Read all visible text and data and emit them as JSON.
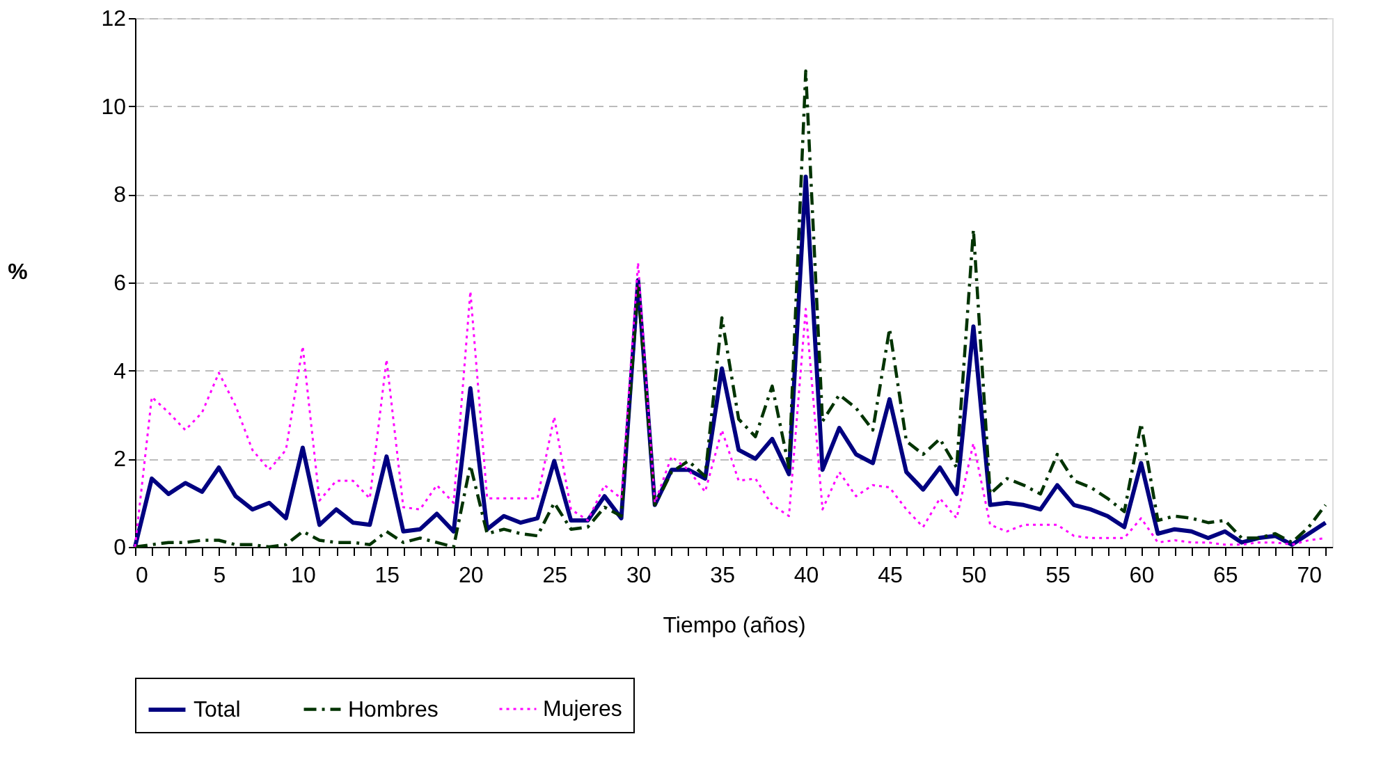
{
  "chart_data": {
    "type": "line",
    "xlabel": "Tiempo (años)",
    "ylabel": "%",
    "x": [
      0,
      1,
      2,
      3,
      4,
      5,
      6,
      7,
      8,
      9,
      10,
      11,
      12,
      13,
      14,
      15,
      16,
      17,
      18,
      19,
      20,
      21,
      22,
      23,
      24,
      25,
      26,
      27,
      28,
      29,
      30,
      31,
      32,
      33,
      34,
      35,
      36,
      37,
      38,
      39,
      40,
      41,
      42,
      43,
      44,
      45,
      46,
      47,
      48,
      49,
      50,
      51,
      52,
      53,
      54,
      55,
      56,
      57,
      58,
      59,
      60,
      61,
      62,
      63,
      64,
      65,
      66,
      67,
      68,
      69,
      70,
      71
    ],
    "xlim": [
      0,
      71.4
    ],
    "xticks": [
      0,
      {
        "value": 1,
        "label": null
      },
      {
        "value": 2,
        "label": null
      },
      {
        "value": 3,
        "label": null
      },
      {
        "value": 4,
        "label": null
      },
      5,
      {
        "value": 6,
        "label": null
      },
      {
        "value": 7,
        "label": null
      },
      {
        "value": 8,
        "label": null
      },
      {
        "value": 9,
        "label": null
      },
      10,
      {
        "value": 11,
        "label": null
      },
      {
        "value": 12,
        "label": null
      },
      {
        "value": 13,
        "label": null
      },
      {
        "value": 14,
        "label": null
      },
      15,
      {
        "value": 16,
        "label": null
      },
      {
        "value": 17,
        "label": null
      },
      {
        "value": 18,
        "label": null
      },
      {
        "value": 19,
        "label": null
      },
      20,
      {
        "value": 21,
        "label": null
      },
      {
        "value": 22,
        "label": null
      },
      {
        "value": 23,
        "label": null
      },
      {
        "value": 24,
        "label": null
      },
      25,
      {
        "value": 26,
        "label": null
      },
      {
        "value": 27,
        "label": null
      },
      {
        "value": 28,
        "label": null
      },
      {
        "value": 29,
        "label": null
      },
      30,
      {
        "value": 31,
        "label": null
      },
      {
        "value": 32,
        "label": null
      },
      {
        "value": 33,
        "label": null
      },
      {
        "value": 34,
        "label": null
      },
      35,
      {
        "value": 36,
        "label": null
      },
      {
        "value": 37,
        "label": null
      },
      {
        "value": 38,
        "label": null
      },
      {
        "value": 39,
        "label": null
      },
      40,
      {
        "value": 41,
        "label": null
      },
      {
        "value": 42,
        "label": null
      },
      {
        "value": 43,
        "label": null
      },
      {
        "value": 44,
        "label": null
      },
      45,
      {
        "value": 46,
        "label": null
      },
      {
        "value": 47,
        "label": null
      },
      {
        "value": 48,
        "label": null
      },
      {
        "value": 49,
        "label": null
      },
      50,
      {
        "value": 51,
        "label": null
      },
      {
        "value": 52,
        "label": null
      },
      {
        "value": 53,
        "label": null
      },
      {
        "value": 54,
        "label": null
      },
      55,
      {
        "value": 56,
        "label": null
      },
      {
        "value": 57,
        "label": null
      },
      {
        "value": 58,
        "label": null
      },
      {
        "value": 59,
        "label": null
      },
      60,
      {
        "value": 61,
        "label": null
      },
      {
        "value": 62,
        "label": null
      },
      {
        "value": 63,
        "label": null
      },
      {
        "value": 64,
        "label": null
      },
      65,
      {
        "value": 66,
        "label": null
      },
      {
        "value": 67,
        "label": null
      },
      {
        "value": 68,
        "label": null
      },
      {
        "value": 69,
        "label": null
      },
      70,
      {
        "value": 71,
        "label": null
      }
    ],
    "ylim": [
      0,
      12
    ],
    "yticks": [
      0,
      2,
      4,
      6,
      8,
      10,
      12
    ],
    "grid": "y",
    "legend": "bottom",
    "marker": "none",
    "series": [
      {
        "name": "Total",
        "color": "#000080",
        "line_style": "solid",
        "values": [
          0,
          1.55,
          1.2,
          1.45,
          1.25,
          1.8,
          1.15,
          0.85,
          1.0,
          0.65,
          2.25,
          0.5,
          0.85,
          0.55,
          0.5,
          2.05,
          0.35,
          0.4,
          0.75,
          0.35,
          3.6,
          0.4,
          0.7,
          0.55,
          0.65,
          1.95,
          0.6,
          0.6,
          1.15,
          0.65,
          6.05,
          0.95,
          1.75,
          1.75,
          1.55,
          4.05,
          2.2,
          2.0,
          2.45,
          1.65,
          8.4,
          1.75,
          2.7,
          2.1,
          1.9,
          3.35,
          1.7,
          1.3,
          1.8,
          1.2,
          5.0,
          0.95,
          1.0,
          0.95,
          0.85,
          1.4,
          0.95,
          0.85,
          0.7,
          0.45,
          1.9,
          0.3,
          0.4,
          0.35,
          0.2,
          0.35,
          0.1,
          0.2,
          0.25,
          0.05,
          0.3,
          0.55
        ]
      },
      {
        "name": "Hombres",
        "color": "#003300",
        "line_style": "dashdot",
        "values": [
          0,
          0.05,
          0.1,
          0.1,
          0.15,
          0.15,
          0.05,
          0.05,
          0.0,
          0.05,
          0.35,
          0.15,
          0.1,
          0.1,
          0.05,
          0.35,
          0.1,
          0.2,
          0.1,
          0.0,
          1.85,
          0.3,
          0.4,
          0.3,
          0.25,
          1.0,
          0.4,
          0.45,
          0.9,
          0.7,
          5.9,
          0.95,
          1.7,
          1.95,
          1.6,
          5.2,
          2.9,
          2.5,
          3.65,
          1.8,
          10.8,
          2.85,
          3.45,
          3.15,
          2.65,
          4.95,
          2.4,
          2.1,
          2.45,
          1.8,
          7.2,
          1.2,
          1.55,
          1.4,
          1.2,
          2.1,
          1.5,
          1.35,
          1.1,
          0.8,
          2.8,
          0.6,
          0.7,
          0.65,
          0.55,
          0.6,
          0.2,
          0.2,
          0.3,
          0.1,
          0.45,
          0.95
        ]
      },
      {
        "name": "Mujeres",
        "color": "#ff00ff",
        "line_style": "dotted",
        "values": [
          0,
          3.4,
          3.05,
          2.65,
          3.05,
          3.95,
          3.2,
          2.2,
          1.75,
          2.2,
          4.55,
          1.05,
          1.5,
          1.5,
          1.1,
          4.25,
          0.9,
          0.85,
          1.4,
          1.0,
          5.8,
          1.1,
          1.1,
          1.1,
          1.1,
          2.95,
          0.85,
          0.6,
          1.4,
          1.1,
          6.45,
          1.0,
          2.05,
          1.75,
          1.25,
          2.65,
          1.5,
          1.55,
          0.95,
          0.7,
          5.4,
          0.85,
          1.7,
          1.15,
          1.4,
          1.35,
          0.85,
          0.45,
          1.1,
          0.65,
          2.35,
          0.5,
          0.35,
          0.5,
          0.5,
          0.5,
          0.25,
          0.2,
          0.2,
          0.2,
          0.65,
          0.1,
          0.15,
          0.1,
          0.1,
          0.05,
          0.05,
          0.1,
          0.1,
          0.05,
          0.15,
          0.2
        ]
      }
    ]
  }
}
